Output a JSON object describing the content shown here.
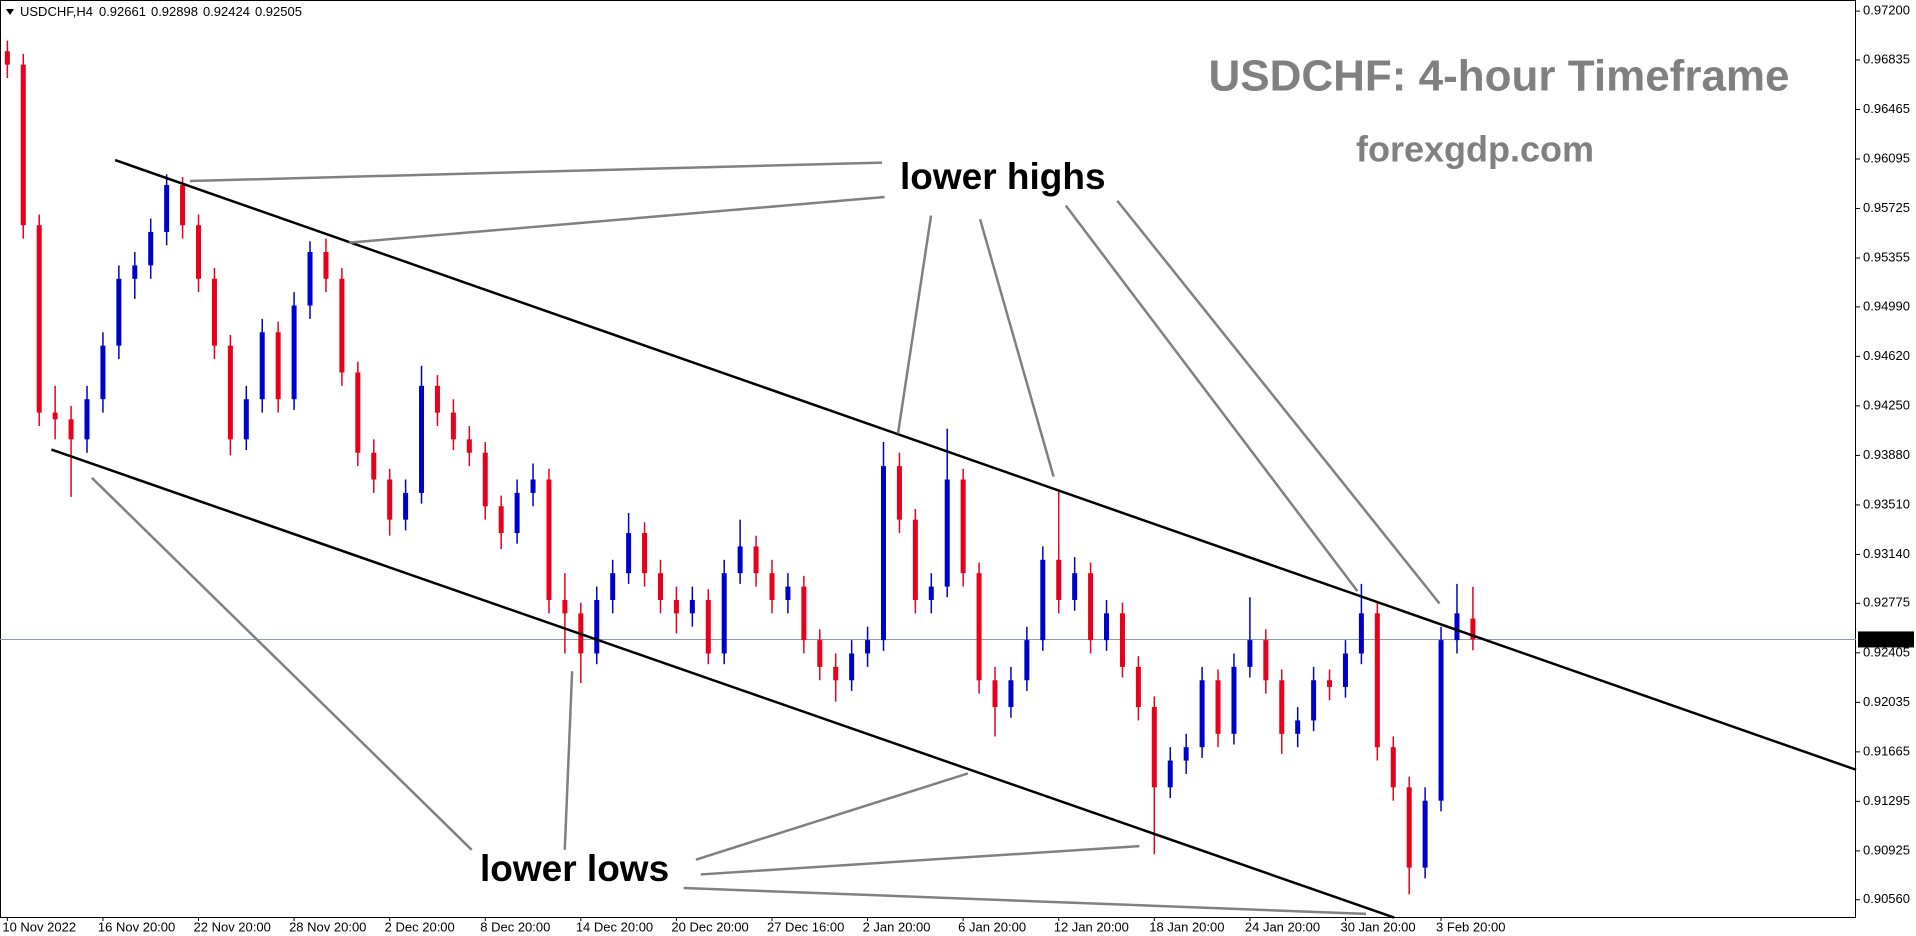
{
  "chart_data": {
    "type": "candlestick",
    "symbol": "USDCHF,H4",
    "title": "USDCHF: 4-hour Timeframe",
    "subtitle": "forexgdp.com",
    "annotations": [
      "lower highs",
      "lower lows"
    ],
    "up_color": "#0000cc",
    "down_color": "#e8001c",
    "ylim": [
      0.90431,
      0.97283
    ],
    "yticks": [
      {
        "value": 0.972,
        "label": "0.97200"
      },
      0.96835,
      0.96465,
      0.96095,
      0.95725,
      0.95355,
      {
        "value": 0.9499,
        "label": "0.94990"
      },
      {
        "value": 0.9462,
        "label": "0.94620"
      },
      {
        "value": 0.9425,
        "label": "0.94250"
      },
      {
        "value": 0.9388,
        "label": "0.93880"
      },
      {
        "value": 0.9351,
        "label": "0.93510"
      },
      {
        "value": 0.9314,
        "label": "0.93140"
      },
      0.92775,
      0.92405,
      0.92035,
      0.91665,
      0.91295,
      0.90925,
      {
        "value": 0.9056,
        "label": "0.90560"
      }
    ],
    "categories": [
      "10 Nov 2022",
      null,
      null,
      null,
      null,
      null,
      "16 Nov 20:00",
      null,
      null,
      null,
      null,
      null,
      "22 Nov 20:00",
      null,
      null,
      null,
      null,
      null,
      "28 Nov 20:00",
      null,
      null,
      null,
      null,
      null,
      "2 Dec 20:00",
      null,
      null,
      null,
      null,
      null,
      "8 Dec 20:00",
      null,
      null,
      null,
      null,
      null,
      "14 Dec 20:00",
      null,
      null,
      null,
      null,
      null,
      "20 Dec 20:00",
      null,
      null,
      null,
      null,
      null,
      "27 Dec 16:00",
      null,
      null,
      null,
      null,
      null,
      "2 Jan 20:00",
      null,
      null,
      null,
      null,
      null,
      "6 Jan 20:00",
      null,
      null,
      null,
      null,
      null,
      "12 Jan 20:00",
      null,
      null,
      null,
      null,
      null,
      "18 Jan 20:00",
      null,
      null,
      null,
      null,
      null,
      "24 Jan 20:00",
      null,
      null,
      null,
      null,
      null,
      "30 Jan 20:00",
      null,
      null,
      null,
      null,
      null,
      "3 Feb 20:00",
      null,
      null
    ],
    "ohlc": [
      [
        0.969,
        0.9698,
        0.967,
        0.968
      ],
      [
        0.968,
        0.9688,
        0.955,
        0.956
      ],
      [
        0.956,
        0.9568,
        0.941,
        0.942
      ],
      [
        0.942,
        0.944,
        0.94,
        0.9415
      ],
      [
        0.9415,
        0.9425,
        0.9357,
        0.94
      ],
      [
        0.94,
        0.944,
        0.939,
        0.943
      ],
      [
        0.943,
        0.948,
        0.942,
        0.947
      ],
      [
        0.947,
        0.953,
        0.946,
        0.952
      ],
      [
        0.952,
        0.954,
        0.9505,
        0.953
      ],
      [
        0.953,
        0.9565,
        0.952,
        0.9555
      ],
      [
        0.9555,
        0.9598,
        0.9545,
        0.959
      ],
      [
        0.959,
        0.9596,
        0.955,
        0.956
      ],
      [
        0.956,
        0.9568,
        0.951,
        0.952
      ],
      [
        0.952,
        0.9528,
        0.946,
        0.947
      ],
      [
        0.947,
        0.9478,
        0.9388,
        0.94
      ],
      [
        0.94,
        0.944,
        0.9392,
        0.943
      ],
      [
        0.943,
        0.949,
        0.942,
        0.948
      ],
      [
        0.948,
        0.9488,
        0.942,
        0.943
      ],
      [
        0.943,
        0.951,
        0.9422,
        0.95
      ],
      [
        0.95,
        0.9548,
        0.949,
        0.954
      ],
      [
        0.954,
        0.955,
        0.951,
        0.952
      ],
      [
        0.952,
        0.9528,
        0.944,
        0.945
      ],
      [
        0.945,
        0.9458,
        0.938,
        0.939
      ],
      [
        0.939,
        0.94,
        0.936,
        0.937
      ],
      [
        0.937,
        0.9378,
        0.9328,
        0.934
      ],
      [
        0.934,
        0.937,
        0.9332,
        0.936
      ],
      [
        0.936,
        0.9455,
        0.9352,
        0.944
      ],
      [
        0.944,
        0.9448,
        0.941,
        0.942
      ],
      [
        0.942,
        0.943,
        0.9392,
        0.94
      ],
      [
        0.94,
        0.941,
        0.938,
        0.939
      ],
      [
        0.939,
        0.9398,
        0.934,
        0.935
      ],
      [
        0.935,
        0.9358,
        0.9318,
        0.933
      ],
      [
        0.933,
        0.937,
        0.9322,
        0.936
      ],
      [
        0.936,
        0.9382,
        0.935,
        0.937
      ],
      [
        0.937,
        0.9378,
        0.927,
        0.928
      ],
      [
        0.928,
        0.93,
        0.924,
        0.927
      ],
      [
        0.927,
        0.9278,
        0.9218,
        0.924
      ],
      [
        0.924,
        0.929,
        0.9232,
        0.928
      ],
      [
        0.928,
        0.931,
        0.927,
        0.93
      ],
      [
        0.93,
        0.9345,
        0.9292,
        0.933
      ],
      [
        0.933,
        0.9338,
        0.929,
        0.93
      ],
      [
        0.93,
        0.931,
        0.927,
        0.928
      ],
      [
        0.928,
        0.929,
        0.9255,
        0.927
      ],
      [
        0.927,
        0.929,
        0.926,
        0.928
      ],
      [
        0.928,
        0.9288,
        0.9232,
        0.924
      ],
      [
        0.924,
        0.931,
        0.9232,
        0.93
      ],
      [
        0.93,
        0.934,
        0.9292,
        0.932
      ],
      [
        0.932,
        0.9328,
        0.929,
        0.93
      ],
      [
        0.93,
        0.931,
        0.927,
        0.928
      ],
      [
        0.928,
        0.93,
        0.927,
        0.929
      ],
      [
        0.929,
        0.9298,
        0.924,
        0.925
      ],
      [
        0.925,
        0.9258,
        0.922,
        0.923
      ],
      [
        0.923,
        0.924,
        0.9204,
        0.922
      ],
      [
        0.922,
        0.925,
        0.9212,
        0.924
      ],
      [
        0.924,
        0.926,
        0.923,
        0.925
      ],
      [
        0.925,
        0.9398,
        0.9242,
        0.938
      ],
      [
        0.938,
        0.939,
        0.933,
        0.934
      ],
      [
        0.934,
        0.9348,
        0.927,
        0.928
      ],
      [
        0.928,
        0.93,
        0.927,
        0.929
      ],
      [
        0.929,
        0.9408,
        0.9282,
        0.937
      ],
      [
        0.937,
        0.9378,
        0.929,
        0.93
      ],
      [
        0.93,
        0.9308,
        0.921,
        0.922
      ],
      [
        0.922,
        0.923,
        0.9178,
        0.92
      ],
      [
        0.92,
        0.923,
        0.9192,
        0.922
      ],
      [
        0.922,
        0.926,
        0.9212,
        0.925
      ],
      [
        0.925,
        0.932,
        0.9242,
        0.931
      ],
      [
        0.931,
        0.9362,
        0.927,
        0.928
      ],
      [
        0.928,
        0.9312,
        0.9272,
        0.93
      ],
      [
        0.93,
        0.9308,
        0.924,
        0.925
      ],
      [
        0.925,
        0.928,
        0.9242,
        0.927
      ],
      [
        0.927,
        0.9278,
        0.9222,
        0.923
      ],
      [
        0.923,
        0.9238,
        0.919,
        0.92
      ],
      [
        0.92,
        0.9208,
        0.909,
        0.914
      ],
      [
        0.914,
        0.917,
        0.9132,
        0.916
      ],
      [
        0.916,
        0.918,
        0.915,
        0.917
      ],
      [
        0.917,
        0.923,
        0.9162,
        0.922
      ],
      [
        0.922,
        0.9228,
        0.917,
        0.918
      ],
      [
        0.918,
        0.924,
        0.9172,
        0.923
      ],
      [
        0.923,
        0.9282,
        0.9222,
        0.925
      ],
      [
        0.925,
        0.9258,
        0.921,
        0.922
      ],
      [
        0.922,
        0.9228,
        0.9165,
        0.918
      ],
      [
        0.918,
        0.92,
        0.917,
        0.919
      ],
      [
        0.919,
        0.923,
        0.9182,
        0.922
      ],
      [
        0.922,
        0.9228,
        0.9205,
        0.9215
      ],
      [
        0.9215,
        0.925,
        0.9207,
        0.924
      ],
      [
        0.924,
        0.9292,
        0.9232,
        0.927
      ],
      [
        0.927,
        0.9278,
        0.916,
        0.917
      ],
      [
        0.917,
        0.9178,
        0.913,
        0.914
      ],
      [
        0.914,
        0.9148,
        0.906,
        0.908
      ],
      [
        0.908,
        0.914,
        0.9072,
        0.913
      ],
      [
        0.913,
        0.926,
        0.9122,
        0.925
      ],
      [
        0.925,
        0.9292,
        0.924,
        0.927
      ],
      [
        0.92661,
        0.92898,
        0.92424,
        0.92505
      ]
    ]
  }
}
